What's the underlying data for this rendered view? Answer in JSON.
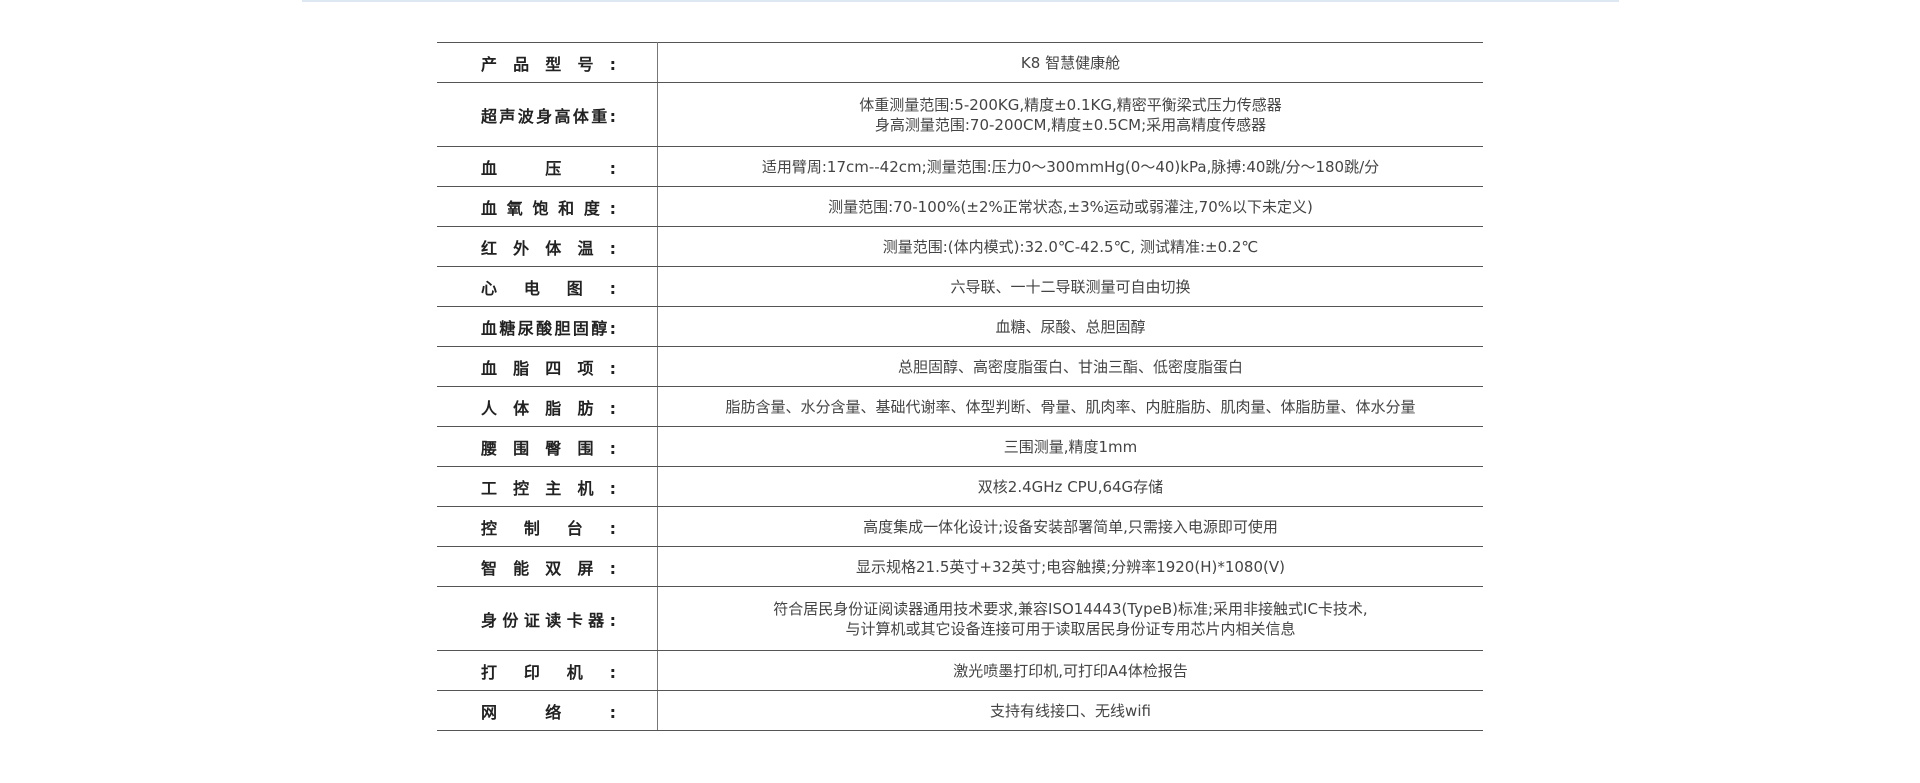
{
  "specs": [
    {
      "label": "产品型号:",
      "lines": [
        "K8 智慧健康舱"
      ]
    },
    {
      "label": "超声波身高体重:",
      "lines": [
        "体重测量范围:5-200KG,精度±0.1KG,精密平衡梁式压力传感器",
        "身高测量范围:70-200CM,精度±0.5CM;采用高精度传感器"
      ]
    },
    {
      "label": "血压:",
      "lines": [
        "适用臂周:17cm--42cm;测量范围:压力0～300mmHg(0～40)kPa,脉搏:40跳/分～180跳/分"
      ]
    },
    {
      "label": "血氧饱和度:",
      "lines": [
        "测量范围:70-100%(±2%正常状态,±3%运动或弱灌注,70%以下未定义)"
      ]
    },
    {
      "label": "红外体温:",
      "lines": [
        "测量范围:(体内模式):32.0℃-42.5℃, 测试精准:±0.2℃"
      ]
    },
    {
      "label": "心电图:",
      "lines": [
        "六导联、一十二导联测量可自由切换"
      ]
    },
    {
      "label": "血糖尿酸胆固醇:",
      "lines": [
        "血糖、尿酸、总胆固醇"
      ]
    },
    {
      "label": "血脂四项:",
      "lines": [
        "总胆固醇、高密度脂蛋白、甘油三酯、低密度脂蛋白"
      ]
    },
    {
      "label": "人体脂肪:",
      "lines": [
        "脂肪含量、水分含量、基础代谢率、体型判断、骨量、肌肉率、内脏脂肪、肌肉量、体脂肪量、体水分量"
      ]
    },
    {
      "label": "腰围臀围:",
      "lines": [
        "三围测量,精度1mm"
      ]
    },
    {
      "label": "工控主机:",
      "lines": [
        "双核2.4GHz CPU,64G存储"
      ]
    },
    {
      "label": "控制台:",
      "lines": [
        "高度集成一体化设计;设备安装部署简单,只需接入电源即可使用"
      ]
    },
    {
      "label": "智能双屏:",
      "lines": [
        "显示规格21.5英寸+32英寸;电容触摸;分辨率1920(H)*1080(V)"
      ]
    },
    {
      "label": "身份证读卡器:",
      "lines": [
        "符合居民身份证阅读器通用技术要求,兼容ISO14443(TypeB)标准;采用非接触式IC卡技术,",
        "与计算机或其它设备连接可用于读取居民身份证专用芯片内相关信息"
      ]
    },
    {
      "label": "打印机:",
      "lines": [
        "激光喷墨打印机,可打印A4体检报告"
      ]
    },
    {
      "label": "网络:",
      "lines": [
        "支持有线接口、无线wifi"
      ]
    }
  ]
}
